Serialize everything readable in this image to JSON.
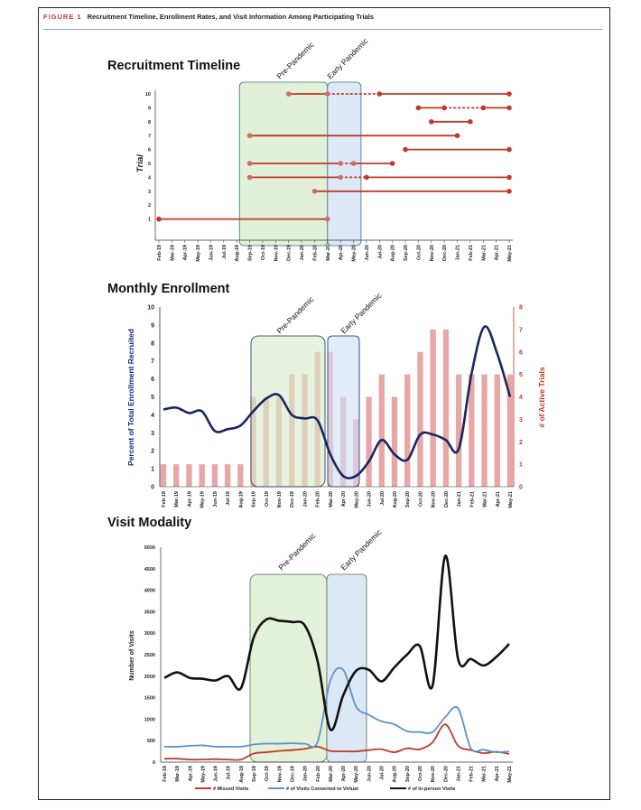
{
  "figure": {
    "number": "FIGURE 1",
    "title": "Recruitment Timeline, Enrollment Rates, and Visit Information Among Participating Trials"
  },
  "months": [
    "Feb-19",
    "Mar-19",
    "Apr-19",
    "May-19",
    "Jun-19",
    "Jul-19",
    "Aug-19",
    "Sep-19",
    "Oct-19",
    "Nov-19",
    "Dec-19",
    "Jan-20",
    "Feb-20",
    "Mar-20",
    "Apr-20",
    "May-20",
    "Jun-20",
    "Jul-20",
    "Aug-20",
    "Sep-20",
    "Oct-20",
    "Nov-20",
    "Dec-20",
    "Jan-21",
    "Feb-21",
    "Mar-21",
    "Apr-21",
    "May-21"
  ],
  "timeline_months": [
    "Feb-19",
    "Mar-19",
    "Apr-19",
    "May-19",
    "Jun-19",
    "Jul-19",
    "Aug-19",
    "Sep-19",
    "Oct-19",
    "Nov-19",
    "Dec-19",
    "Jan-20",
    "Feb-20",
    "Mar-20",
    "Apr-20",
    "May-20",
    "Jun-20",
    "Jul-20",
    "Aug-20",
    "Sep-20",
    "Oct-20",
    "Nov-20",
    "Dec-20",
    "Jan-21",
    "Feb-21",
    "Mar-21",
    "Apr-21",
    "May-21"
  ],
  "shaded_periods": {
    "pre": "Pre-Pandemic",
    "early": "Early Pandemic"
  },
  "chart_data": [
    {
      "type": "timeline",
      "title": "Recruitment Timeline",
      "ylabel": "Trial",
      "trials": [
        {
          "trial": 1,
          "segments": [
            {
              "start": "Feb-19",
              "end": "Mar-20",
              "style": "solid"
            }
          ],
          "markers": [
            "Feb-19",
            "Mar-20"
          ]
        },
        {
          "trial": 3,
          "segments": [
            {
              "start": "Feb-20",
              "end": "May-21",
              "style": "solid"
            }
          ],
          "markers": [
            "Feb-20",
            "May-21"
          ]
        },
        {
          "trial": 4,
          "segments": [
            {
              "start": "Sep-19",
              "end": "Apr-20",
              "style": "solid"
            },
            {
              "start": "Apr-20",
              "end": "Jun-20",
              "style": "dashed"
            },
            {
              "start": "Jun-20",
              "end": "May-21",
              "style": "solid"
            }
          ],
          "markers": [
            "Sep-19",
            "Apr-20",
            "Jun-20",
            "May-21"
          ]
        },
        {
          "trial": 5,
          "segments": [
            {
              "start": "Sep-19",
              "end": "Apr-20",
              "style": "solid"
            },
            {
              "start": "Apr-20",
              "end": "May-20",
              "style": "dashed"
            },
            {
              "start": "May-20",
              "end": "Aug-20",
              "style": "solid"
            }
          ],
          "markers": [
            "Sep-19",
            "Apr-20",
            "May-20",
            "Aug-20"
          ]
        },
        {
          "trial": 6,
          "segments": [
            {
              "start": "Sep-20",
              "end": "May-21",
              "style": "solid"
            }
          ],
          "markers": [
            "Sep-20",
            "May-21"
          ]
        },
        {
          "trial": 7,
          "segments": [
            {
              "start": "Sep-19",
              "end": "Jan-21",
              "style": "solid"
            }
          ],
          "markers": [
            "Sep-19",
            "Jan-21"
          ]
        },
        {
          "trial": 8,
          "segments": [
            {
              "start": "Nov-20",
              "end": "Feb-21",
              "style": "solid"
            }
          ],
          "markers": [
            "Nov-20",
            "Feb-21"
          ]
        },
        {
          "trial": 9,
          "segments": [
            {
              "start": "Oct-20",
              "end": "Dec-20",
              "style": "solid"
            },
            {
              "start": "Dec-20",
              "end": "Mar-21",
              "style": "dashed"
            },
            {
              "start": "Mar-21",
              "end": "May-21",
              "style": "solid"
            }
          ],
          "markers": [
            "Oct-20",
            "Dec-20",
            "Mar-21",
            "May-21"
          ]
        },
        {
          "trial": 10,
          "segments": [
            {
              "start": "Dec-19",
              "end": "Mar-20",
              "style": "solid"
            },
            {
              "start": "Mar-20",
              "end": "Jul-20",
              "style": "dashed"
            },
            {
              "start": "Jul-20",
              "end": "May-21",
              "style": "solid"
            }
          ],
          "markers": [
            "Dec-19",
            "Mar-20",
            "Jul-20",
            "May-21"
          ]
        }
      ],
      "ylim": [
        0,
        10
      ],
      "yticks": [
        1,
        2,
        3,
        4,
        5,
        6,
        7,
        8,
        9,
        10
      ]
    },
    {
      "type": "bar+line",
      "title": "Monthly Enrollment",
      "ylabel": "Percent of Total Enrollment Recruited",
      "y2label": "# of Active Trials",
      "ylim": [
        0,
        10
      ],
      "y2lim": [
        0,
        8
      ],
      "line": {
        "name": "Percent of Total Enrollment Recruited",
        "color": "#1a2560",
        "values": [
          4.3,
          4.4,
          4.1,
          4.2,
          3.1,
          3.2,
          3.4,
          4.2,
          4.9,
          5.1,
          4.0,
          3.8,
          3.7,
          1.8,
          0.6,
          0.6,
          1.4,
          2.6,
          1.8,
          1.5,
          2.9,
          2.9,
          2.6,
          2.1,
          6.3,
          8.9,
          7.4,
          5.0
        ]
      },
      "bars": {
        "name": "# of Active Trials",
        "color": "#e8a7a7",
        "values": [
          1,
          1,
          1,
          1,
          1,
          1,
          1,
          4,
          4,
          4,
          5,
          5,
          6,
          6,
          4,
          3,
          4,
          5,
          4,
          5,
          6,
          7,
          7,
          5,
          5,
          5,
          5,
          5
        ]
      }
    },
    {
      "type": "line",
      "title": "Visit Modality",
      "ylabel": "Number of Visits",
      "ylim": [
        0,
        5000
      ],
      "yticks": [
        0,
        500,
        1000,
        1500,
        2000,
        2500,
        3000,
        3500,
        4000,
        4500,
        5000
      ],
      "series": [
        {
          "name": "# Missed Visits",
          "color": "#c0392b",
          "values": [
            80,
            80,
            60,
            60,
            70,
            60,
            60,
            200,
            230,
            260,
            280,
            310,
            360,
            260,
            250,
            250,
            280,
            300,
            230,
            320,
            300,
            460,
            880,
            380,
            280,
            210,
            240,
            190
          ]
        },
        {
          "name": "# of Visits Converted to Virtual",
          "color": "#5b93c9",
          "values": [
            360,
            360,
            380,
            390,
            360,
            360,
            360,
            410,
            430,
            430,
            440,
            430,
            470,
            1900,
            2150,
            1300,
            1100,
            950,
            880,
            720,
            700,
            700,
            1050,
            1250,
            320,
            290,
            230,
            250
          ]
        },
        {
          "name": "# of In-person Visits",
          "color": "#111111",
          "values": [
            1960,
            2090,
            1960,
            1940,
            1900,
            2000,
            1720,
            2900,
            3320,
            3290,
            3260,
            3180,
            2350,
            760,
            1550,
            2120,
            2150,
            1880,
            2200,
            2500,
            2700,
            1780,
            4800,
            2400,
            2400,
            2250,
            2450,
            2750
          ]
        }
      ]
    }
  ]
}
